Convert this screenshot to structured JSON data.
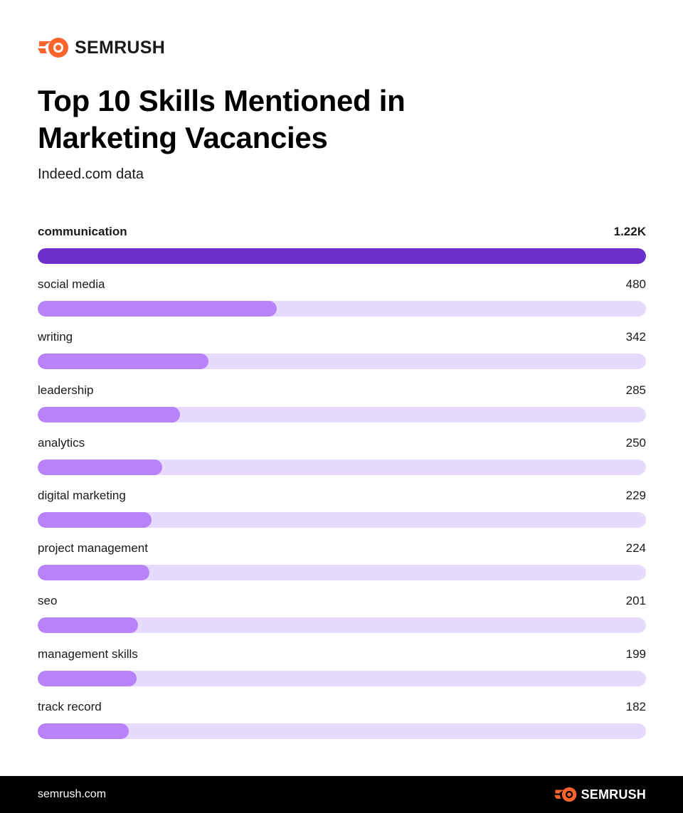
{
  "brand": {
    "name": "SEMRUSH",
    "accent_color": "#ff642d",
    "footer_url": "semrush.com"
  },
  "colors": {
    "top_bar": "#6b2fca",
    "bar": "#b882fb",
    "track": "#e7dbfd",
    "footer_bg": "#000000"
  },
  "chart_data": {
    "type": "bar",
    "orientation": "horizontal",
    "title": "Top 10 Skills Mentioned in Marketing Vacancies",
    "subtitle": "Indeed.com data",
    "categories": [
      "communication",
      "social media",
      "writing",
      "leadership",
      "analytics",
      "digital marketing",
      "project management",
      "seo",
      "management skills",
      "track record"
    ],
    "values": [
      1220,
      480,
      342,
      285,
      250,
      229,
      224,
      201,
      199,
      182
    ],
    "value_labels": [
      "1.22K",
      "480",
      "342",
      "285",
      "250",
      "229",
      "224",
      "201",
      "199",
      "182"
    ],
    "xlim": [
      0,
      1220
    ],
    "grid": false,
    "legend": "none"
  }
}
